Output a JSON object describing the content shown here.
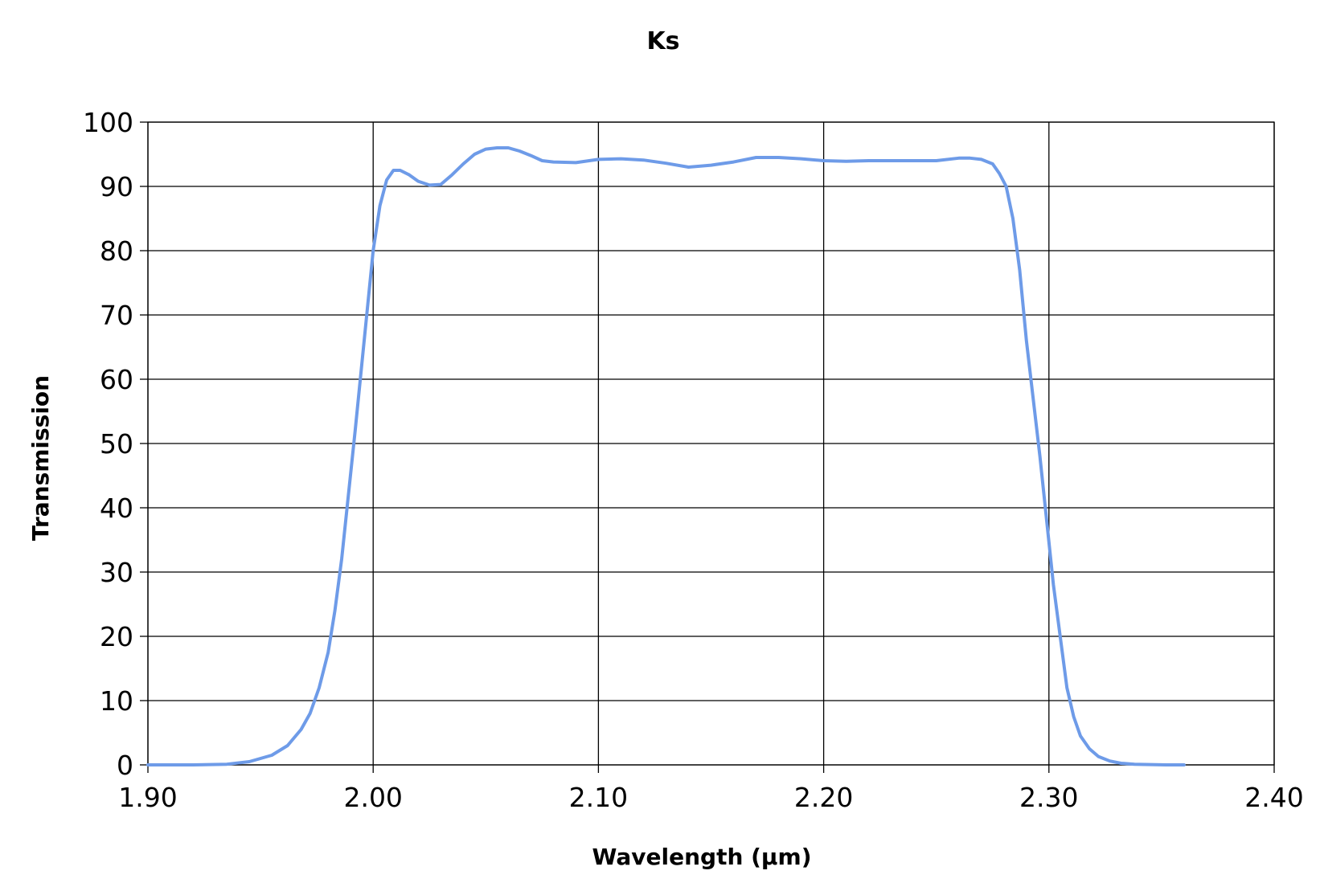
{
  "chart_data": {
    "type": "line",
    "title": "Ks",
    "xlabel": "Wavelength (µm)",
    "ylabel": "Transmission",
    "xlim": [
      1.9,
      2.4
    ],
    "ylim": [
      0,
      100
    ],
    "x_ticks": [
      1.9,
      2.0,
      2.1,
      2.2,
      2.3,
      2.4
    ],
    "x_tick_labels": [
      "1.90",
      "2.00",
      "2.10",
      "2.20",
      "2.30",
      "2.40"
    ],
    "y_ticks": [
      0,
      10,
      20,
      30,
      40,
      50,
      60,
      70,
      80,
      90,
      100
    ],
    "y_tick_labels": [
      "0",
      "10",
      "20",
      "30",
      "40",
      "50",
      "60",
      "70",
      "80",
      "90",
      "100"
    ],
    "grid": true,
    "legend": "none",
    "series_color": "#6e9be8",
    "series": [
      {
        "x": [
          1.9,
          1.92,
          1.935,
          1.945,
          1.955,
          1.962,
          1.968,
          1.972,
          1.976,
          1.98,
          1.983,
          1.986,
          1.989,
          1.992,
          1.995,
          1.998,
          2.0,
          2.003,
          2.006,
          2.009,
          2.012,
          2.016,
          2.02,
          2.025,
          2.03,
          2.035,
          2.04,
          2.045,
          2.05,
          2.055,
          2.06,
          2.065,
          2.07,
          2.075,
          2.08,
          2.09,
          2.1,
          2.11,
          2.12,
          2.13,
          2.14,
          2.15,
          2.16,
          2.17,
          2.18,
          2.19,
          2.2,
          2.21,
          2.22,
          2.23,
          2.24,
          2.25,
          2.26,
          2.265,
          2.27,
          2.275,
          2.278,
          2.281,
          2.284,
          2.287,
          2.29,
          2.293,
          2.296,
          2.299,
          2.302,
          2.305,
          2.308,
          2.311,
          2.314,
          2.318,
          2.322,
          2.327,
          2.332,
          2.338,
          2.345,
          2.352,
          2.36
        ],
        "y": [
          0.0,
          0.0,
          0.1,
          0.5,
          1.5,
          3.0,
          5.5,
          8.0,
          12.0,
          17.5,
          24.0,
          32.0,
          42.0,
          52.0,
          62.5,
          73.0,
          80.0,
          87.0,
          91.0,
          92.5,
          92.5,
          91.8,
          90.8,
          90.2,
          90.3,
          91.8,
          93.5,
          95.0,
          95.8,
          96.0,
          96.0,
          95.5,
          94.8,
          94.0,
          93.8,
          93.7,
          94.2,
          94.3,
          94.1,
          93.6,
          93.0,
          93.3,
          93.8,
          94.5,
          94.5,
          94.3,
          94.0,
          93.9,
          94.0,
          94.0,
          94.0,
          94.0,
          94.4,
          94.4,
          94.2,
          93.5,
          92.0,
          90.0,
          85.0,
          77.0,
          66.0,
          57.0,
          48.0,
          38.0,
          28.0,
          20.0,
          12.0,
          7.5,
          4.5,
          2.5,
          1.3,
          0.6,
          0.25,
          0.1,
          0.05,
          0.0,
          0.0
        ]
      }
    ]
  }
}
